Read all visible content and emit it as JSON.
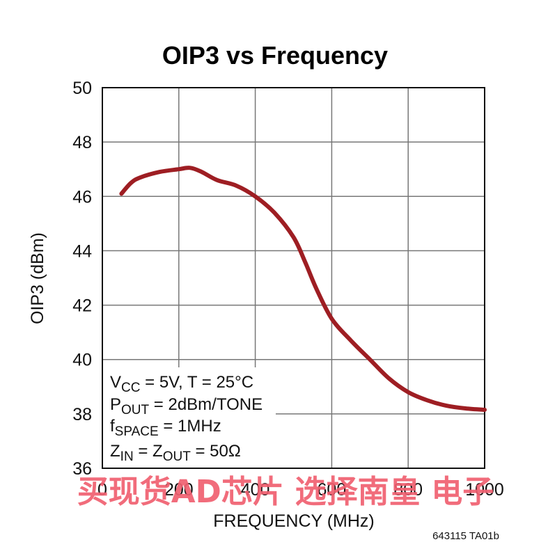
{
  "chart_data": {
    "type": "line",
    "title": "OIP3 vs Frequency",
    "xlabel": "FREQUENCY (MHz)",
    "ylabel": "OIP3 (dBm)",
    "xlim": [
      0,
      1000
    ],
    "ylim": [
      36,
      50
    ],
    "xticks": [
      0,
      200,
      400,
      600,
      800,
      1000
    ],
    "yticks": [
      36,
      38,
      40,
      42,
      44,
      46,
      48,
      50
    ],
    "grid": true,
    "series": [
      {
        "color": "#9e1e23",
        "x": [
          50,
          75,
          100,
          150,
          200,
          230,
          260,
          300,
          350,
          400,
          450,
          500,
          530,
          560,
          600,
          650,
          700,
          750,
          800,
          850,
          900,
          950,
          1000
        ],
        "y": [
          46.1,
          46.5,
          46.7,
          46.9,
          47.0,
          47.05,
          46.9,
          46.6,
          46.4,
          46.0,
          45.4,
          44.5,
          43.6,
          42.6,
          41.5,
          40.7,
          40.0,
          39.3,
          38.8,
          38.5,
          38.3,
          38.2,
          38.15
        ]
      }
    ],
    "annotations": [
      {
        "base": "V",
        "sub": "CC",
        "rest": " = 5V, T = 25°C"
      },
      {
        "base": "P",
        "sub": "OUT",
        "rest": " = 2dBm/TONE"
      },
      {
        "base": "f",
        "sub": "SPACE",
        "rest": " = 1MHz"
      },
      {
        "base": "Z",
        "sub": "IN",
        "mid": " = Z",
        "sub2": "OUT",
        "rest": " = 50Ω"
      }
    ]
  },
  "figure_ref": "643115 TA01b",
  "watermark": "买现货AD芯片 选择南皇 电子"
}
